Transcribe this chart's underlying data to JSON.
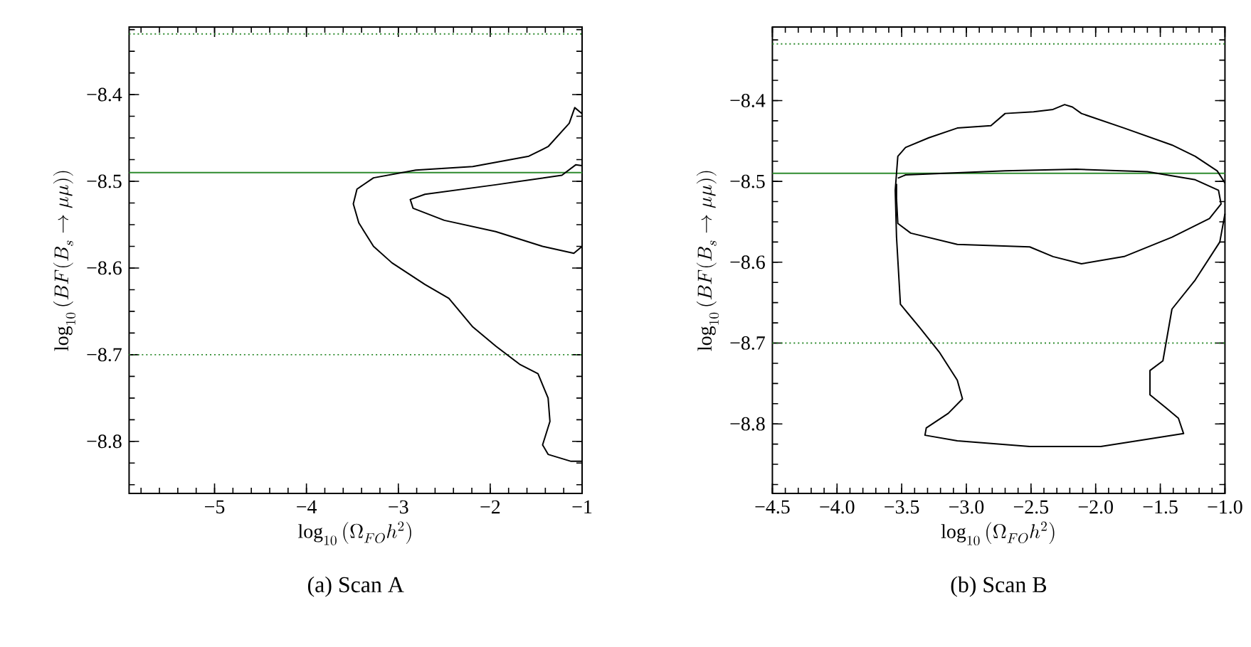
{
  "chart_data": [
    {
      "type": "line",
      "xlabel": "\\log_{10}\\left(\\Omega_{FO}h^2\\right)",
      "ylabel": "\\log_{10}\\left(BF(B_s\\rightarrow\\mu\\mu)\\right)",
      "annotations": [
        "(a) Scan A"
      ],
      "xlim": [
        -5.93,
        -1
      ],
      "ylim": [
        -8.86,
        -8.322
      ],
      "xticks": [
        {
          "value": -5,
          "label": "−5"
        },
        {
          "value": -4,
          "label": "−4"
        },
        {
          "value": -3,
          "label": "−3"
        },
        {
          "value": -2,
          "label": "−2"
        },
        {
          "value": -1,
          "label": "−1"
        }
      ],
      "yticks": [
        {
          "value": -8.8,
          "label": "−8.8"
        },
        {
          "value": -8.7,
          "label": "−8.7"
        },
        {
          "value": -8.6,
          "label": "−8.6"
        },
        {
          "value": -8.5,
          "label": "−8.5"
        },
        {
          "value": -8.4,
          "label": "−8.4"
        }
      ],
      "ref_lines": [
        {
          "axis": "y",
          "value": -8.33,
          "color": "#2e8b2e",
          "line_style": "dotted"
        },
        {
          "axis": "y",
          "value": -8.49,
          "color": "#2e8b2e",
          "line_style": "solid"
        },
        {
          "axis": "y",
          "value": -8.7,
          "color": "#2e8b2e",
          "line_style": "dotted"
        }
      ],
      "series": [
        {
          "color": "#000000",
          "x": [
            -1.0,
            -1.08,
            -1.14,
            -1.37,
            -1.58,
            -2.19,
            -2.81,
            -3.27,
            -3.45,
            -3.49,
            -3.43,
            -3.27,
            -3.07,
            -2.71,
            -2.45,
            -2.19,
            -1.94,
            -1.68,
            -1.48,
            -1.37,
            -1.35,
            -1.43,
            -1.37,
            -1.12,
            -1.0
          ],
          "values": [
            -8.422,
            -8.415,
            -8.433,
            -8.46,
            -8.471,
            -8.483,
            -8.487,
            -8.496,
            -8.509,
            -8.526,
            -8.548,
            -8.575,
            -8.594,
            -8.619,
            -8.635,
            -8.668,
            -8.69,
            -8.711,
            -8.722,
            -8.75,
            -8.777,
            -8.804,
            -8.815,
            -8.823,
            -8.823
          ]
        },
        {
          "color": "#000000",
          "x": [
            -1.0,
            -1.07,
            -1.22,
            -1.94,
            -2.71,
            -2.87,
            -2.84,
            -2.5,
            -1.94,
            -1.43,
            -1.09,
            -1.0
          ],
          "values": [
            -8.482,
            -8.481,
            -8.493,
            -8.504,
            -8.515,
            -8.521,
            -8.531,
            -8.545,
            -8.558,
            -8.575,
            -8.583,
            -8.575
          ]
        }
      ]
    },
    {
      "type": "line",
      "xlabel": "\\log_{10}\\left(\\Omega_{FO}h^2\\right)",
      "ylabel": "\\log_{10}\\left(BF(B_s\\rightarrow\\mu\\mu)\\right)",
      "annotations": [
        "(b) Scan B"
      ],
      "xlim": [
        -4.5,
        -1.0
      ],
      "ylim": [
        -8.886,
        -8.309
      ],
      "xticks": [
        {
          "value": -4.5,
          "label": "−4.5"
        },
        {
          "value": -4.0,
          "label": "−4.0"
        },
        {
          "value": -3.5,
          "label": "−3.5"
        },
        {
          "value": -3.0,
          "label": "−3.0"
        },
        {
          "value": -2.5,
          "label": "−2.5"
        },
        {
          "value": -2.0,
          "label": "−2.0"
        },
        {
          "value": -1.5,
          "label": "−1.5"
        },
        {
          "value": -1.0,
          "label": "−1.0"
        }
      ],
      "yticks": [
        {
          "value": -8.8,
          "label": "−8.8"
        },
        {
          "value": -8.7,
          "label": "−8.7"
        },
        {
          "value": -8.6,
          "label": "−8.6"
        },
        {
          "value": -8.5,
          "label": "−8.5"
        },
        {
          "value": -8.4,
          "label": "−8.4"
        }
      ],
      "ref_lines": [
        {
          "axis": "y",
          "value": -8.33,
          "color": "#2e8b2e",
          "line_style": "dotted"
        },
        {
          "axis": "y",
          "value": -8.49,
          "color": "#2e8b2e",
          "line_style": "solid"
        },
        {
          "axis": "y",
          "value": -8.7,
          "color": "#2e8b2e",
          "line_style": "dotted"
        }
      ],
      "series": [
        {
          "color": "#000000",
          "x": [
            -1.0,
            -1.06,
            -1.23,
            -1.41,
            -1.78,
            -2.11,
            -2.18,
            -2.24,
            -2.33,
            -2.48,
            -2.7,
            -2.81,
            -3.07,
            -3.29,
            -3.47,
            -3.53,
            -3.55,
            -3.54,
            -3.51,
            -3.36,
            -3.21,
            -3.07,
            -3.03,
            -3.14,
            -3.31,
            -3.32,
            -3.07,
            -2.51,
            -1.96,
            -1.6,
            -1.32,
            -1.36,
            -1.45,
            -1.58,
            -1.58,
            -1.48,
            -1.41,
            -1.23,
            -1.04,
            -1.0
          ],
          "values": [
            -8.502,
            -8.487,
            -8.469,
            -8.455,
            -8.434,
            -8.416,
            -8.408,
            -8.405,
            -8.411,
            -8.414,
            -8.416,
            -8.431,
            -8.434,
            -8.446,
            -8.458,
            -8.469,
            -8.511,
            -8.569,
            -8.652,
            -8.681,
            -8.711,
            -8.746,
            -8.769,
            -8.787,
            -8.805,
            -8.814,
            -8.821,
            -8.828,
            -8.828,
            -8.819,
            -8.812,
            -8.793,
            -8.781,
            -8.764,
            -8.734,
            -8.722,
            -8.658,
            -8.622,
            -8.575,
            -8.54
          ]
        },
        {
          "color": "#000000",
          "x": [
            -3.53,
            -3.47,
            -2.7,
            -2.15,
            -1.6,
            -1.23,
            -1.05,
            -1.03,
            -1.12,
            -1.41,
            -1.78,
            -2.11,
            -2.33,
            -2.51,
            -3.07,
            -3.43,
            -3.53,
            -3.54,
            -3.54
          ],
          "values": [
            -8.496,
            -8.492,
            -8.487,
            -8.485,
            -8.488,
            -8.498,
            -8.511,
            -8.528,
            -8.546,
            -8.569,
            -8.593,
            -8.602,
            -8.593,
            -8.581,
            -8.578,
            -8.564,
            -8.552,
            -8.522,
            -8.503
          ]
        }
      ]
    }
  ]
}
